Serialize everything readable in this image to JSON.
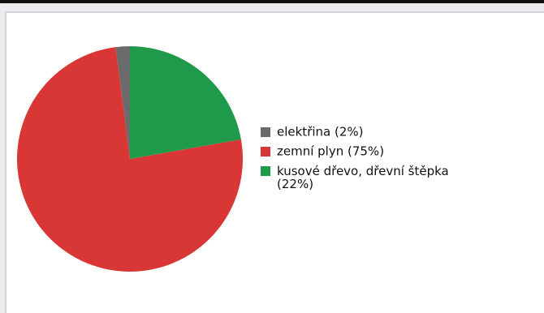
{
  "chart_data": {
    "type": "pie",
    "categories": [
      "elektřina (2%)",
      "zemní plyn (75%)",
      "kusové dřevo, dřevní štěpka (22%)"
    ],
    "values": [
      2,
      75,
      22
    ],
    "colors": [
      "#6b6b6b",
      "#d93636",
      "#1e9a4a"
    ],
    "legend": "right"
  }
}
